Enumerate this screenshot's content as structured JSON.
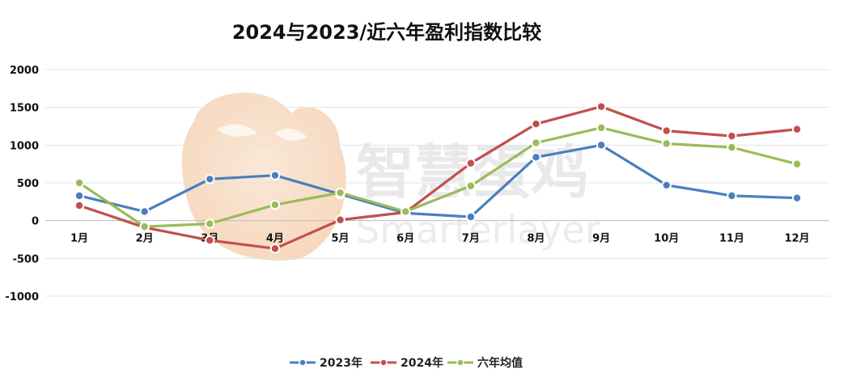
{
  "chart_data": {
    "type": "line",
    "title": "2024与2023/近六年盈利指数比较",
    "categories": [
      "1月",
      "2月",
      "3月",
      "4月",
      "5月",
      "6月",
      "7月",
      "8月",
      "9月",
      "10月",
      "11月",
      "12月"
    ],
    "ylim": [
      -1000,
      2000
    ],
    "yticks": [
      2000,
      1500,
      1000,
      500,
      0,
      -500,
      -1000
    ],
    "grid": true,
    "legend_position": "bottom-center",
    "series": [
      {
        "name": "2023年",
        "color": "#4a7ebf",
        "values": [
          330,
          120,
          550,
          600,
          350,
          100,
          50,
          840,
          1000,
          470,
          330,
          300
        ]
      },
      {
        "name": "2024年",
        "color": "#c0504d",
        "values": [
          200,
          -90,
          -260,
          -370,
          10,
          110,
          760,
          1280,
          1510,
          1190,
          1120,
          1210
        ]
      },
      {
        "name": "六年均值",
        "color": "#9bbb59",
        "values": [
          500,
          -80,
          -40,
          210,
          370,
          120,
          460,
          1030,
          1230,
          1020,
          970,
          750
        ]
      }
    ]
  }
}
